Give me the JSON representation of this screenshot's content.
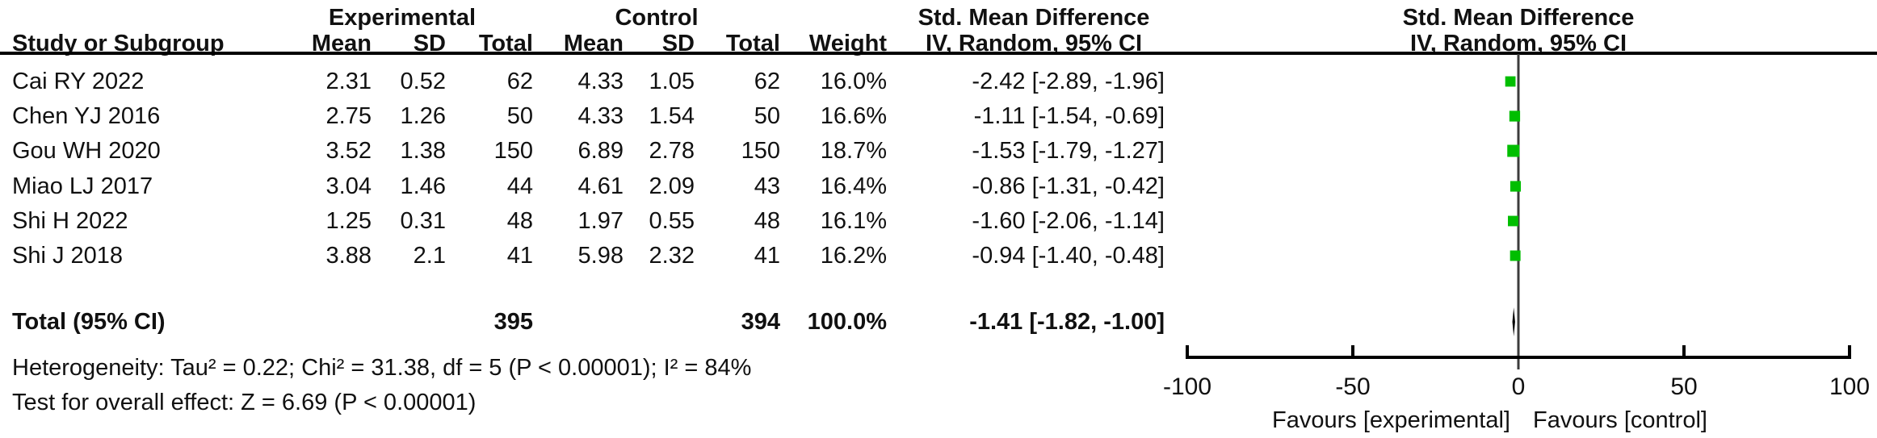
{
  "table": {
    "group_headers": {
      "experimental": "Experimental",
      "control": "Control",
      "smd_left": "Std. Mean Difference",
      "smd_right": "Std. Mean Difference"
    },
    "col_headers": {
      "study": "Study or Subgroup",
      "mean1": "Mean",
      "sd1": "SD",
      "total1": "Total",
      "mean2": "Mean",
      "sd2": "SD",
      "total2": "Total",
      "weight": "Weight",
      "ci_left": "IV, Random, 95% CI",
      "ci_right": "IV, Random, 95% CI"
    },
    "rows": [
      {
        "study": "Cai RY 2022",
        "mean1": "2.31",
        "sd1": "0.52",
        "total1": "62",
        "mean2": "4.33",
        "sd2": "1.05",
        "total2": "62",
        "weight": "16.0%",
        "ci": "-2.42 [-2.89, -1.96]"
      },
      {
        "study": "Chen YJ 2016",
        "mean1": "2.75",
        "sd1": "1.26",
        "total1": "50",
        "mean2": "4.33",
        "sd2": "1.54",
        "total2": "50",
        "weight": "16.6%",
        "ci": "-1.11 [-1.54, -0.69]"
      },
      {
        "study": "Gou WH 2020",
        "mean1": "3.52",
        "sd1": "1.38",
        "total1": "150",
        "mean2": "6.89",
        "sd2": "2.78",
        "total2": "150",
        "weight": "18.7%",
        "ci": "-1.53 [-1.79, -1.27]"
      },
      {
        "study": "Miao LJ 2017",
        "mean1": "3.04",
        "sd1": "1.46",
        "total1": "44",
        "mean2": "4.61",
        "sd2": "2.09",
        "total2": "43",
        "weight": "16.4%",
        "ci": "-0.86 [-1.31, -0.42]"
      },
      {
        "study": "Shi H 2022",
        "mean1": "1.25",
        "sd1": "0.31",
        "total1": "48",
        "mean2": "1.97",
        "sd2": "0.55",
        "total2": "48",
        "weight": "16.1%",
        "ci": "-1.60 [-2.06, -1.14]"
      },
      {
        "study": "Shi J 2018",
        "mean1": "3.88",
        "sd1": "2.1",
        "total1": "41",
        "mean2": "5.98",
        "sd2": "2.32",
        "total2": "41",
        "weight": "16.2%",
        "ci": "-0.94 [-1.40, -0.48]"
      }
    ],
    "total_row": {
      "label": "Total (95% CI)",
      "total1": "395",
      "total2": "394",
      "weight": "100.0%",
      "ci": "-1.41 [-1.82, -1.00]"
    },
    "footer_line1": "Heterogeneity: Tau² = 0.22; Chi² = 31.38, df = 5 (P < 0.00001); I² = 84%",
    "footer_line2": "Test for overall effect: Z = 6.69 (P < 0.00001)"
  },
  "chart_data": {
    "type": "scatter",
    "subtype": "forest-plot",
    "title": "Std. Mean Difference",
    "effect_measure": "IV, Random, 95% CI",
    "x_axis": {
      "min": -100,
      "max": 100,
      "ticks": [
        -100,
        -50,
        0,
        50,
        100
      ]
    },
    "studies": [
      "Cai RY 2022",
      "Chen YJ 2016",
      "Gou WH 2020",
      "Miao LJ 2017",
      "Shi H 2022",
      "Shi J 2018"
    ],
    "estimates": [
      -2.42,
      -1.11,
      -1.53,
      -0.86,
      -1.6,
      -0.94
    ],
    "ci_low": [
      -2.89,
      -1.54,
      -1.79,
      -1.31,
      -2.06,
      -1.4
    ],
    "ci_high": [
      -1.96,
      -0.69,
      -1.27,
      -0.42,
      -1.14,
      -0.48
    ],
    "weights_pct": [
      16.0,
      16.6,
      18.7,
      16.4,
      16.1,
      16.2
    ],
    "overall": {
      "label": "Total (95% CI)",
      "estimate": -1.41,
      "ci_low": -1.82,
      "ci_high": -1.0
    },
    "favours_left": "Favours [experimental]",
    "favours_right": "Favours [control]",
    "marker_color": "#00BE00",
    "zero_line_color": "#3C3C3C",
    "axis_color": "#000000",
    "legend_position": "none",
    "grid": false
  }
}
